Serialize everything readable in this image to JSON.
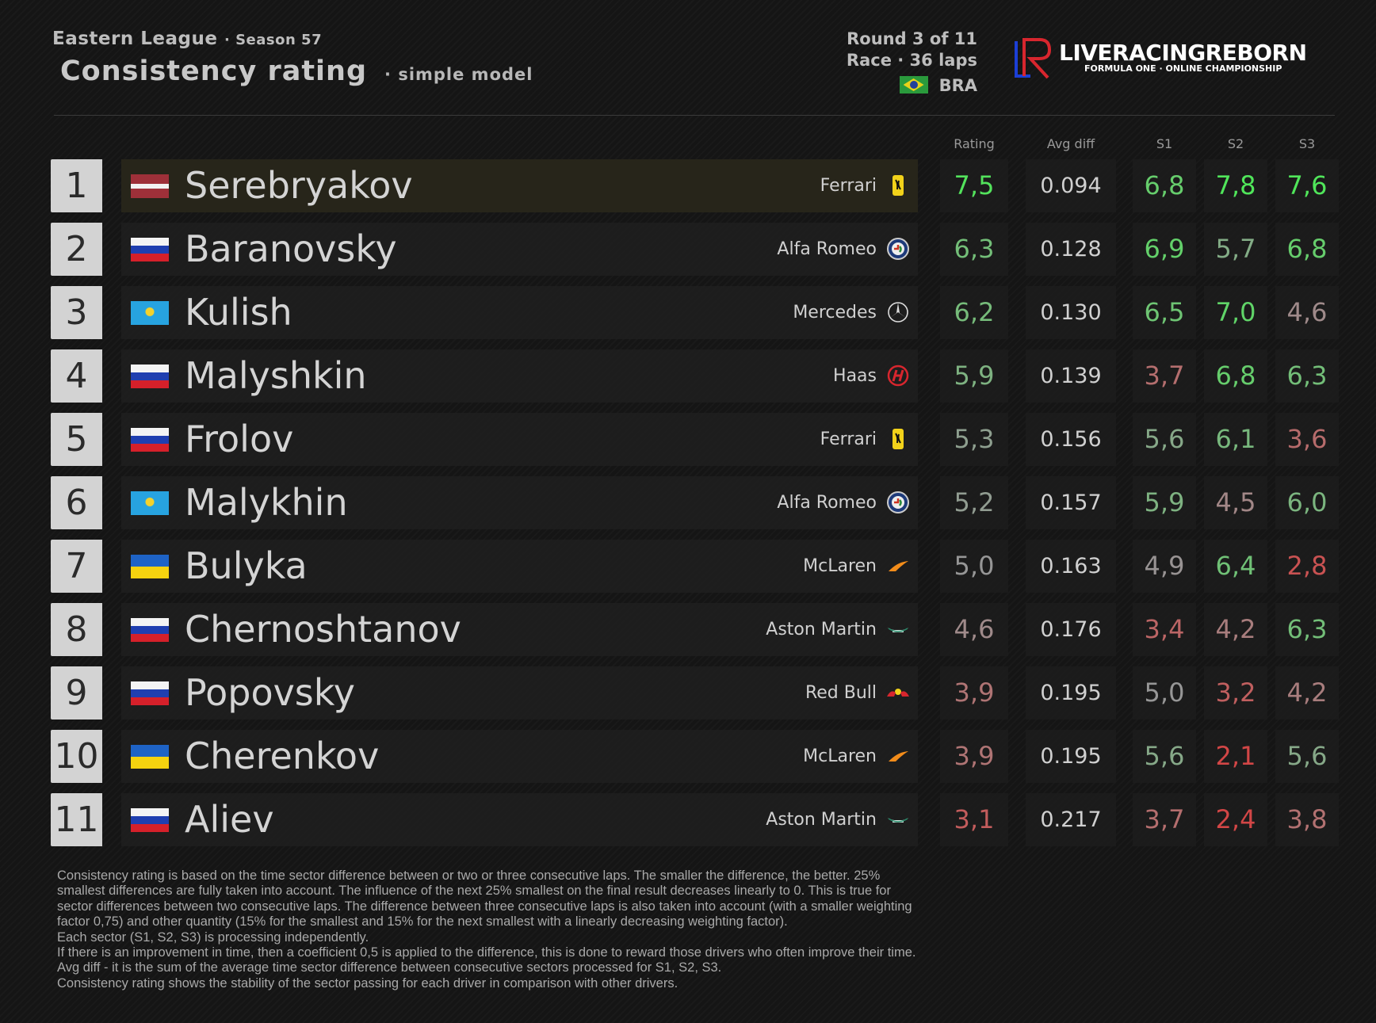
{
  "header": {
    "league": "Eastern League",
    "season": "· Season 57",
    "title": "Consistency rating",
    "subtitle": "· simple model",
    "round": "Round 3 of 11",
    "race": "Race · 36 laps",
    "country": "BRA"
  },
  "logo": {
    "name": "LIVERACINGREBORN",
    "tagline": "FORMULA ONE · ONLINE CHAMPIONSHIP"
  },
  "table": {
    "columns": [
      "Rating",
      "Avg diff",
      "S1",
      "S2",
      "S3"
    ],
    "rows": [
      {
        "position": 1,
        "driver": "Serebryakov",
        "team": "Ferrari",
        "rating": "7,5",
        "avg_diff": "0.094",
        "s1": "6,8",
        "s2": "7,8",
        "s3": "7,6"
      },
      {
        "position": 2,
        "driver": "Baranovsky",
        "team": "Alfa Romeo",
        "rating": "6,3",
        "avg_diff": "0.128",
        "s1": "6,9",
        "s2": "5,7",
        "s3": "6,8"
      },
      {
        "position": 3,
        "driver": "Kulish",
        "team": "Mercedes",
        "rating": "6,2",
        "avg_diff": "0.130",
        "s1": "6,5",
        "s2": "7,0",
        "s3": "4,6"
      },
      {
        "position": 4,
        "driver": "Malyshkin",
        "team": "Haas",
        "rating": "5,9",
        "avg_diff": "0.139",
        "s1": "3,7",
        "s2": "6,8",
        "s3": "6,3"
      },
      {
        "position": 5,
        "driver": "Frolov",
        "team": "Ferrari",
        "rating": "5,3",
        "avg_diff": "0.156",
        "s1": "5,6",
        "s2": "6,1",
        "s3": "3,6"
      },
      {
        "position": 6,
        "driver": "Malykhin",
        "team": "Alfa Romeo",
        "rating": "5,2",
        "avg_diff": "0.157",
        "s1": "5,9",
        "s2": "4,5",
        "s3": "6,0"
      },
      {
        "position": 7,
        "driver": "Bulyka",
        "team": "McLaren",
        "rating": "5,0",
        "avg_diff": "0.163",
        "s1": "4,9",
        "s2": "6,4",
        "s3": "2,8"
      },
      {
        "position": 8,
        "driver": "Chernoshtanov",
        "team": "Aston Martin",
        "rating": "4,6",
        "avg_diff": "0.176",
        "s1": "3,4",
        "s2": "4,2",
        "s3": "6,3"
      },
      {
        "position": 9,
        "driver": "Popovsky",
        "team": "Red Bull",
        "rating": "3,9",
        "avg_diff": "0.195",
        "s1": "5,0",
        "s2": "3,2",
        "s3": "4,2"
      },
      {
        "position": 10,
        "driver": "Cherenkov",
        "team": "McLaren",
        "rating": "3,9",
        "avg_diff": "0.195",
        "s1": "5,6",
        "s2": "2,1",
        "s3": "5,6"
      },
      {
        "position": 11,
        "driver": "Aliev",
        "team": "Aston Martin",
        "rating": "3,1",
        "avg_diff": "0.217",
        "s1": "3,7",
        "s2": "2,4",
        "s3": "3,8"
      }
    ]
  },
  "notes": [
    "Consistency rating is based on the time sector difference between or two or three consecutive laps. The smaller the difference, the better. 25%",
    "smallest differences are fully taken into account. The influence of the next 25% smallest on the final result decreases linearly to 0. This is true for",
    "sector differences between two consecutive laps. The difference between three consecutive laps is also taken into account (with a smaller weighting",
    "factor 0,75) and other quantity (15% for the smallest and 15% for the next smallest with a linearly decreasing weighting factor).",
    "Each sector (S1, S2, S3) is processing independently.",
    "If there is an improvement in time, then a coefficient 0,5 is applied to the difference, this is done to reward those drivers who often improve their time.",
    "Avg diff - it is the sum of the average time sector difference between consecutive sectors processed for S1, S2, S3.",
    "Consistency rating shows the stability of the sector passing for each driver in comparison with other drivers."
  ]
}
